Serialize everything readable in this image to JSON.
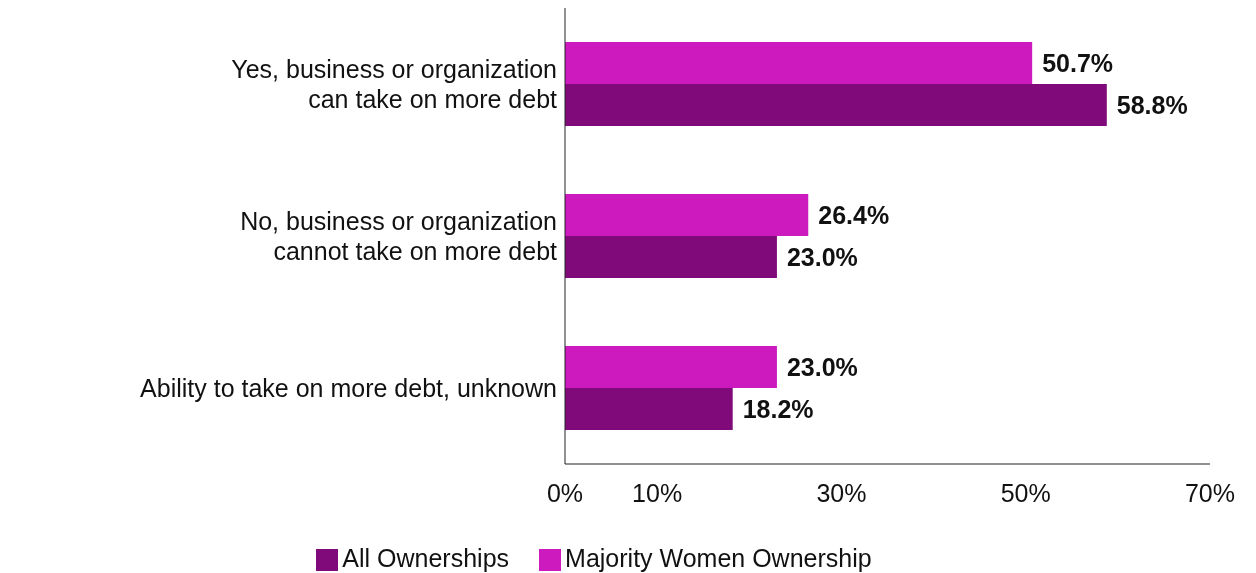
{
  "chart_data": {
    "type": "bar",
    "orientation": "horizontal",
    "categories": [
      "Yes, business or organization can take on more debt",
      "No, business or organization cannot take on more debt",
      "Ability to take on more debt, unknown"
    ],
    "series": [
      {
        "name": "Majority Women Ownership",
        "color": "#cc1abf",
        "values": [
          50.7,
          26.4,
          23.0
        ],
        "value_labels": [
          "50.7%",
          "26.4%",
          "23.0%"
        ]
      },
      {
        "name": "All Ownerships",
        "color": "#800a7a",
        "values": [
          58.8,
          23.0,
          18.2
        ],
        "value_labels": [
          "58.8%",
          "23.0%",
          "18.2%"
        ]
      }
    ],
    "xlim": [
      0,
      70
    ],
    "xticks": [
      {
        "value": 0,
        "label": "0%"
      },
      {
        "value": 10,
        "label": "10%"
      },
      {
        "value": 30,
        "label": "30%"
      },
      {
        "value": 50,
        "label": "50%"
      },
      {
        "value": 70,
        "label": "70%"
      }
    ],
    "grid": false,
    "legend": "bottom"
  }
}
